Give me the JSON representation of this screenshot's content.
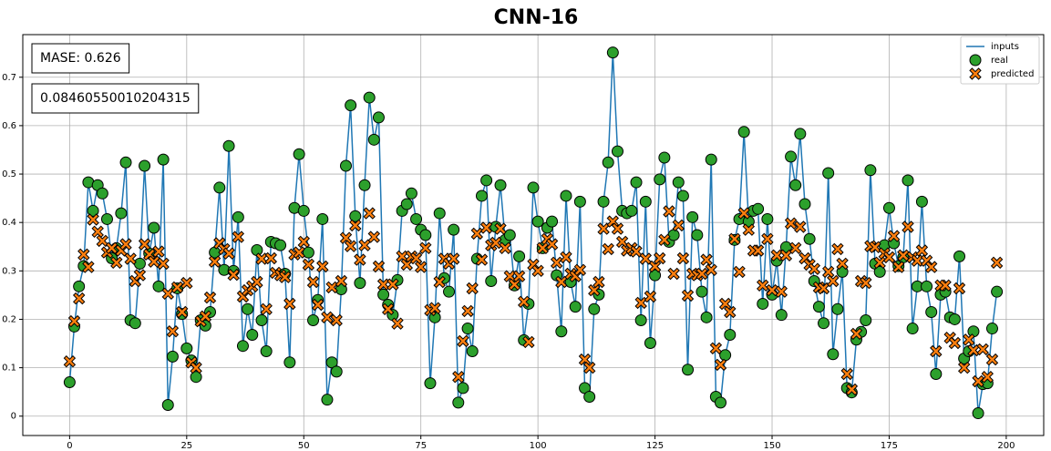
{
  "chart_data": {
    "type": "line",
    "title": "CNN-16",
    "annotations": [
      "MASE: 0.626",
      "0.08460550010204315"
    ],
    "xlim": [
      -10,
      208
    ],
    "ylim": [
      -0.04,
      0.788
    ],
    "xticks": [
      0,
      25,
      50,
      75,
      100,
      125,
      150,
      175,
      200
    ],
    "yticks": [
      0.0,
      0.1,
      0.2,
      0.3,
      0.4,
      0.5,
      0.6,
      0.7
    ],
    "grid": true,
    "legend": "upper right",
    "series": [
      {
        "name": "inputs",
        "color": "#1f77b4",
        "marker": "none",
        "values": [
          0.07,
          0.185,
          0.268,
          0.31,
          0.483,
          0.424,
          0.477,
          0.46,
          0.407,
          0.326,
          0.347,
          0.419,
          0.524,
          0.198,
          0.192,
          0.315,
          0.517,
          0.336,
          0.389,
          0.268,
          0.53,
          0.023,
          0.123,
          0.264,
          0.211,
          0.14,
          0.115,
          0.081,
          0.198,
          0.187,
          0.215,
          0.338,
          0.472,
          0.302,
          0.558,
          0.3,
          0.411,
          0.145,
          0.221,
          0.168,
          0.343,
          0.198,
          0.134,
          0.36,
          0.357,
          0.353,
          0.294,
          0.111,
          0.43,
          0.541,
          0.424,
          0.338,
          0.198,
          0.24,
          0.407,
          0.034,
          0.111,
          0.092,
          0.262,
          0.517,
          0.642,
          0.413,
          0.275,
          0.477,
          0.658,
          0.571,
          0.617,
          0.251,
          0.23,
          0.209,
          0.281,
          0.424,
          0.438,
          0.46,
          0.407,
          0.385,
          0.374,
          0.068,
          0.204,
          0.419,
          0.285,
          0.257,
          0.385,
          0.028,
          0.058,
          0.181,
          0.134,
          0.325,
          0.455,
          0.487,
          0.279,
          0.391,
          0.477,
          0.364,
          0.374,
          0.27,
          0.33,
          0.157,
          0.232,
          0.472,
          0.402,
          0.347,
          0.389,
          0.402,
          0.291,
          0.175,
          0.455,
          0.277,
          0.226,
          0.443,
          0.058,
          0.04,
          0.221,
          0.251,
          0.443,
          0.524,
          0.751,
          0.547,
          0.424,
          0.419,
          0.424,
          0.483,
          0.198,
          0.443,
          0.151,
          0.291,
          0.489,
          0.534,
          0.36,
          0.374,
          0.483,
          0.455,
          0.096,
          0.411,
          0.374,
          0.257,
          0.204,
          0.53,
          0.04,
          0.028,
          0.126,
          0.168,
          0.364,
          0.407,
          0.587,
          0.402,
          0.424,
          0.428,
          0.232,
          0.407,
          0.251,
          0.321,
          0.209,
          0.349,
          0.536,
          0.477,
          0.583,
          0.438,
          0.366,
          0.279,
          0.226,
          0.192,
          0.502,
          0.128,
          0.221,
          0.298,
          0.058,
          0.049,
          0.158,
          0.174,
          0.198,
          0.508,
          0.315,
          0.298,
          0.353,
          0.43,
          0.357,
          0.31,
          0.328,
          0.487,
          0.181,
          0.268,
          0.443,
          0.268,
          0.215,
          0.087,
          0.251,
          0.257,
          0.204,
          0.2,
          0.33,
          0.119,
          0.134,
          0.175,
          0.006,
          0.066,
          0.068,
          0.181,
          0.257
        ]
      },
      {
        "name": "real",
        "color": "#2ca02c",
        "marker": "circle",
        "values": [
          0.07,
          0.185,
          0.268,
          0.31,
          0.483,
          0.424,
          0.477,
          0.46,
          0.407,
          0.326,
          0.347,
          0.419,
          0.524,
          0.198,
          0.192,
          0.315,
          0.517,
          0.336,
          0.389,
          0.268,
          0.53,
          0.023,
          0.123,
          0.264,
          0.211,
          0.14,
          0.115,
          0.081,
          0.198,
          0.187,
          0.215,
          0.338,
          0.472,
          0.302,
          0.558,
          0.3,
          0.411,
          0.145,
          0.221,
          0.168,
          0.343,
          0.198,
          0.134,
          0.36,
          0.357,
          0.353,
          0.294,
          0.111,
          0.43,
          0.541,
          0.424,
          0.338,
          0.198,
          0.24,
          0.407,
          0.034,
          0.111,
          0.092,
          0.262,
          0.517,
          0.642,
          0.413,
          0.275,
          0.477,
          0.658,
          0.571,
          0.617,
          0.251,
          0.23,
          0.209,
          0.281,
          0.424,
          0.438,
          0.46,
          0.407,
          0.385,
          0.374,
          0.068,
          0.204,
          0.419,
          0.285,
          0.257,
          0.385,
          0.028,
          0.058,
          0.181,
          0.134,
          0.325,
          0.455,
          0.487,
          0.279,
          0.391,
          0.477,
          0.364,
          0.374,
          0.27,
          0.33,
          0.157,
          0.232,
          0.472,
          0.402,
          0.347,
          0.389,
          0.402,
          0.291,
          0.175,
          0.455,
          0.277,
          0.226,
          0.443,
          0.058,
          0.04,
          0.221,
          0.251,
          0.443,
          0.524,
          0.751,
          0.547,
          0.424,
          0.419,
          0.424,
          0.483,
          0.198,
          0.443,
          0.151,
          0.291,
          0.489,
          0.534,
          0.36,
          0.374,
          0.483,
          0.455,
          0.096,
          0.411,
          0.374,
          0.257,
          0.204,
          0.53,
          0.04,
          0.028,
          0.126,
          0.168,
          0.364,
          0.407,
          0.587,
          0.402,
          0.424,
          0.428,
          0.232,
          0.407,
          0.251,
          0.321,
          0.209,
          0.349,
          0.536,
          0.477,
          0.583,
          0.438,
          0.366,
          0.279,
          0.226,
          0.192,
          0.502,
          0.128,
          0.221,
          0.298,
          0.058,
          0.049,
          0.158,
          0.174,
          0.198,
          0.508,
          0.315,
          0.298,
          0.353,
          0.43,
          0.357,
          0.31,
          0.328,
          0.487,
          0.181,
          0.268,
          0.443,
          0.268,
          0.215,
          0.087,
          0.251,
          0.257,
          0.204,
          0.2,
          0.33,
          0.119,
          0.134,
          0.175,
          0.006,
          0.066,
          0.068,
          0.181,
          0.257
        ]
      },
      {
        "name": "predicted",
        "color": "#ff7f0e",
        "marker": "x",
        "values": [
          0.113,
          0.196,
          0.243,
          0.334,
          0.308,
          0.406,
          0.381,
          0.362,
          0.338,
          0.347,
          0.317,
          0.342,
          0.355,
          0.325,
          0.279,
          0.291,
          0.355,
          0.334,
          0.319,
          0.34,
          0.315,
          0.253,
          0.175,
          0.266,
          0.215,
          0.275,
          0.111,
          0.1,
          0.196,
          0.206,
          0.245,
          0.319,
          0.357,
          0.345,
          0.336,
          0.292,
          0.37,
          0.247,
          0.26,
          0.268,
          0.277,
          0.325,
          0.221,
          0.326,
          0.296,
          0.291,
          0.287,
          0.232,
          0.334,
          0.338,
          0.36,
          0.313,
          0.277,
          0.23,
          0.309,
          0.204,
          0.266,
          0.198,
          0.279,
          0.368,
          0.351,
          0.394,
          0.323,
          0.353,
          0.419,
          0.37,
          0.309,
          0.272,
          0.221,
          0.272,
          0.191,
          0.33,
          0.313,
          0.33,
          0.326,
          0.308,
          0.347,
          0.219,
          0.223,
          0.277,
          0.325,
          0.315,
          0.325,
          0.081,
          0.155,
          0.217,
          0.264,
          0.377,
          0.323,
          0.389,
          0.353,
          0.358,
          0.387,
          0.347,
          0.289,
          0.272,
          0.289,
          0.236,
          0.153,
          0.313,
          0.3,
          0.347,
          0.366,
          0.355,
          0.317,
          0.277,
          0.328,
          0.294,
          0.289,
          0.302,
          0.117,
          0.1,
          0.26,
          0.277,
          0.387,
          0.345,
          0.402,
          0.387,
          0.36,
          0.342,
          0.347,
          0.34,
          0.234,
          0.325,
          0.247,
          0.309,
          0.326,
          0.364,
          0.423,
          0.294,
          0.394,
          0.326,
          0.249,
          0.294,
          0.291,
          0.294,
          0.323,
          0.302,
          0.14,
          0.106,
          0.232,
          0.215,
          0.366,
          0.298,
          0.419,
          0.385,
          0.342,
          0.342,
          0.27,
          0.366,
          0.26,
          0.332,
          0.257,
          0.332,
          0.398,
          0.347,
          0.391,
          0.326,
          0.313,
          0.304,
          0.266,
          0.264,
          0.298,
          0.279,
          0.345,
          0.315,
          0.087,
          0.055,
          0.17,
          0.279,
          0.275,
          0.351,
          0.349,
          0.317,
          0.336,
          0.328,
          0.372,
          0.308,
          0.332,
          0.391,
          0.328,
          0.321,
          0.342,
          0.321,
          0.308,
          0.134,
          0.27,
          0.27,
          0.162,
          0.151,
          0.264,
          0.1,
          0.158,
          0.136,
          0.072,
          0.138,
          0.081,
          0.117,
          0.317
        ]
      }
    ]
  }
}
